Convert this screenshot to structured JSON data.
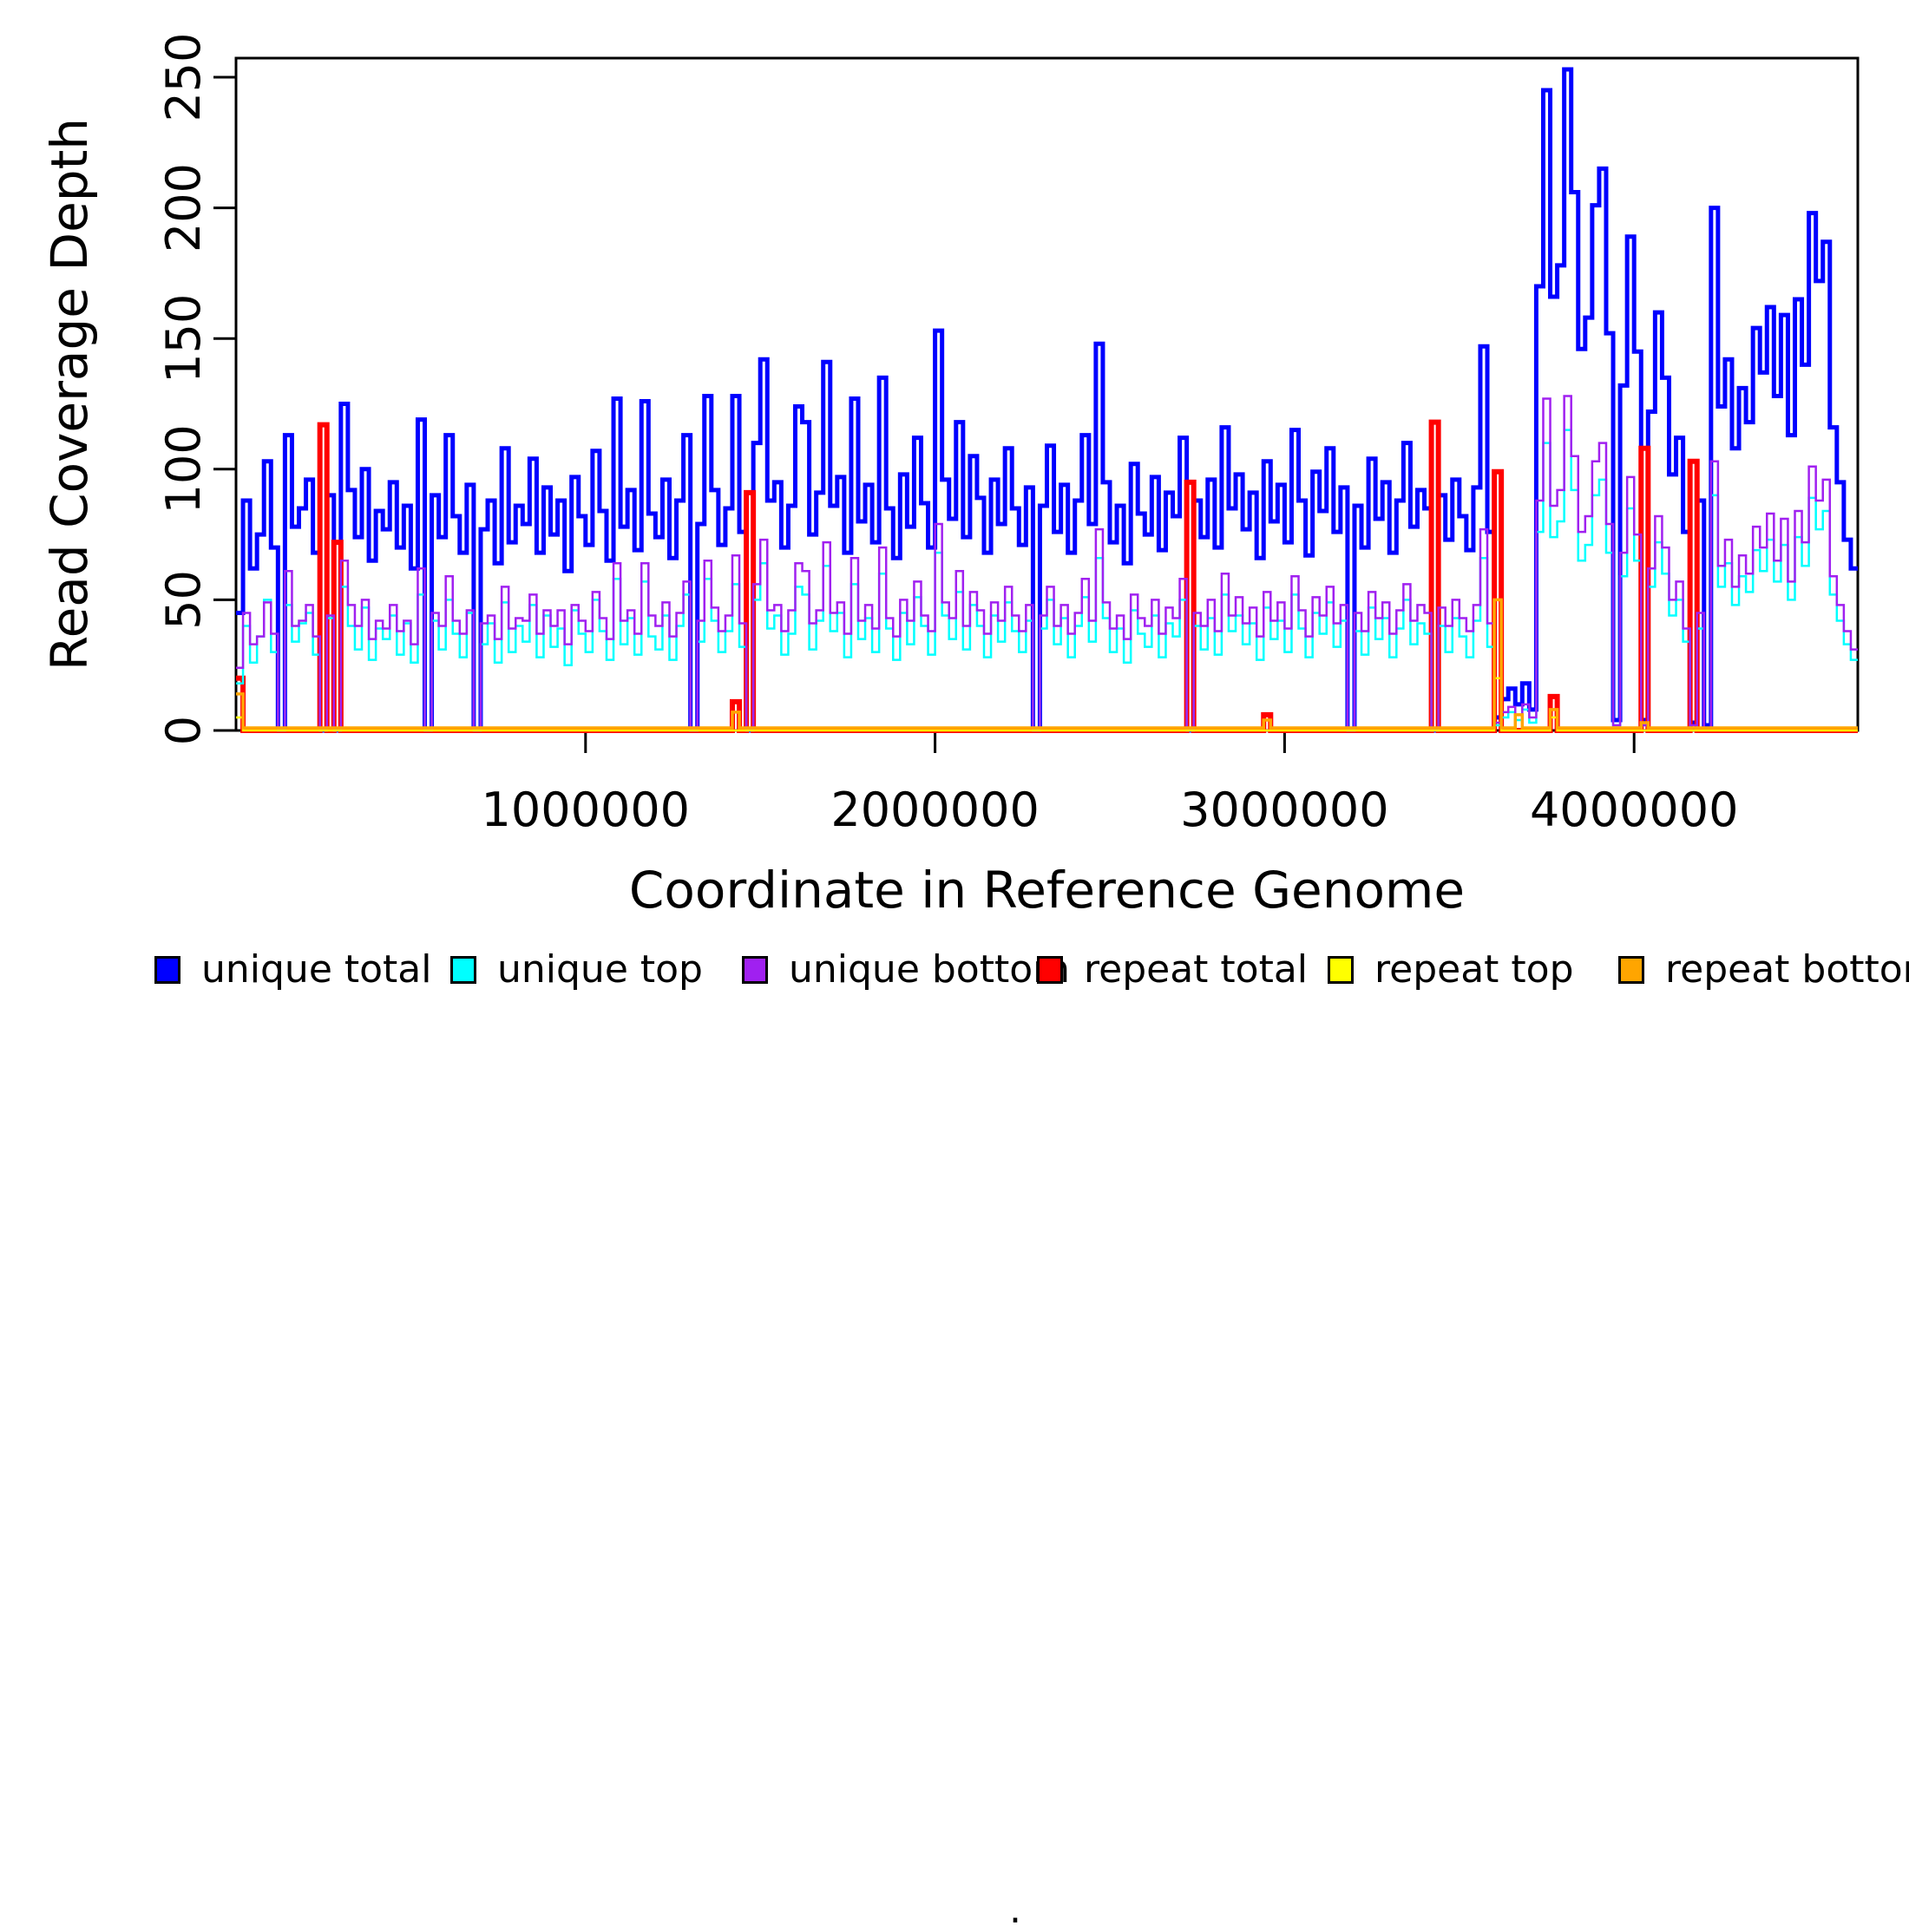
{
  "axes": {
    "x": {
      "label": "Coordinate in Reference Genome",
      "ticks": [
        {
          "value": 1000000,
          "label": "1000000"
        },
        {
          "value": 2000000,
          "label": "2000000"
        },
        {
          "value": 3000000,
          "label": "3000000"
        },
        {
          "value": 4000000,
          "label": "4000000"
        }
      ]
    },
    "y": {
      "label": "Read Coverage Depth",
      "ticks": [
        {
          "value": 0,
          "label": "0"
        },
        {
          "value": 50,
          "label": "50"
        },
        {
          "value": 100,
          "label": "100"
        },
        {
          "value": 150,
          "label": "150"
        },
        {
          "value": 200,
          "label": "200"
        },
        {
          "value": 250,
          "label": "250"
        }
      ]
    }
  },
  "legend": {
    "stray_mark": ".",
    "items": [
      {
        "label": "unique total",
        "color": "#0000ff"
      },
      {
        "label": "unique top",
        "color": "#00ffff"
      },
      {
        "label": "unique bottom",
        "color": "#a020f0"
      },
      {
        "label": "repeat total",
        "color": "#ff0000"
      },
      {
        "label": "repeat top",
        "color": "#ffff00"
      },
      {
        "label": "repeat bottom",
        "color": "#ffa500"
      }
    ]
  },
  "chart_data": {
    "type": "line",
    "subtype": "step-coverage",
    "title": "",
    "xlabel": "Coordinate in Reference Genome",
    "ylabel": "Read Coverage Depth",
    "xlim": [
      0,
      4640000
    ],
    "ylim": [
      0,
      257
    ],
    "grid": false,
    "legend_position": "bottom",
    "bin_size": 20000,
    "x_start": 0,
    "series": [
      {
        "name": "unique total",
        "color": "#0000ff",
        "line_width": 5,
        "values": [
          45,
          88,
          62,
          75,
          103,
          70,
          0,
          113,
          78,
          85,
          96,
          68,
          0,
          90,
          0,
          125,
          92,
          74,
          100,
          65,
          84,
          77,
          95,
          70,
          86,
          62,
          119,
          0,
          90,
          74,
          113,
          82,
          68,
          94,
          0,
          77,
          88,
          64,
          108,
          72,
          86,
          79,
          104,
          68,
          93,
          75,
          88,
          61,
          97,
          82,
          71,
          107,
          84,
          65,
          127,
          78,
          92,
          69,
          126,
          83,
          74,
          96,
          66,
          88,
          113,
          0,
          79,
          128,
          92,
          71,
          85,
          128,
          76,
          0,
          110,
          142,
          88,
          95,
          70,
          86,
          124,
          118,
          75,
          91,
          141,
          86,
          97,
          68,
          127,
          80,
          94,
          72,
          135,
          85,
          66,
          98,
          78,
          112,
          87,
          70,
          153,
          96,
          81,
          118,
          74,
          105,
          89,
          68,
          96,
          79,
          108,
          85,
          71,
          93,
          0,
          86,
          109,
          76,
          94,
          68,
          88,
          113,
          79,
          148,
          95,
          72,
          86,
          64,
          102,
          83,
          75,
          97,
          69,
          91,
          82,
          112,
          0,
          88,
          74,
          96,
          70,
          116,
          85,
          98,
          77,
          91,
          66,
          103,
          80,
          94,
          72,
          115,
          88,
          67,
          99,
          84,
          108,
          76,
          93,
          0,
          86,
          70,
          104,
          81,
          95,
          68,
          88,
          110,
          78,
          92,
          85,
          0,
          90,
          73,
          96,
          82,
          69,
          93,
          147,
          76,
          5,
          12,
          16,
          10,
          18,
          8,
          170,
          245,
          166,
          178,
          253,
          206,
          146,
          158,
          201,
          215,
          152,
          4,
          132,
          189,
          145,
          4,
          122,
          160,
          135,
          98,
          112,
          76,
          3,
          88,
          2,
          200,
          124,
          142,
          108,
          131,
          118,
          154,
          137,
          162,
          128,
          159,
          113,
          165,
          140,
          198,
          172,
          187,
          116,
          95,
          73,
          62
        ]
      },
      {
        "name": "unique top",
        "color": "#00ffff",
        "line_width": 2.5,
        "values": [
          18,
          40,
          26,
          36,
          50,
          30,
          0,
          48,
          34,
          41,
          45,
          29,
          0,
          43,
          0,
          55,
          40,
          31,
          47,
          27,
          39,
          35,
          44,
          29,
          41,
          26,
          52,
          0,
          42,
          31,
          50,
          37,
          28,
          45,
          0,
          33,
          41,
          26,
          49,
          30,
          40,
          34,
          48,
          28,
          44,
          32,
          39,
          25,
          46,
          37,
          30,
          50,
          38,
          27,
          58,
          33,
          43,
          29,
          57,
          36,
          31,
          44,
          27,
          40,
          52,
          0,
          34,
          58,
          42,
          30,
          38,
          56,
          32,
          0,
          50,
          64,
          39,
          44,
          29,
          37,
          55,
          52,
          31,
          42,
          63,
          38,
          45,
          28,
          56,
          35,
          43,
          30,
          60,
          39,
          27,
          45,
          33,
          51,
          40,
          29,
          68,
          44,
          35,
          53,
          31,
          48,
          40,
          28,
          44,
          34,
          49,
          38,
          30,
          42,
          0,
          39,
          50,
          33,
          43,
          28,
          40,
          51,
          34,
          66,
          43,
          30,
          39,
          26,
          46,
          37,
          32,
          44,
          28,
          41,
          36,
          50,
          0,
          40,
          31,
          43,
          29,
          52,
          38,
          44,
          33,
          41,
          27,
          47,
          35,
          42,
          30,
          52,
          39,
          28,
          45,
          37,
          49,
          32,
          42,
          0,
          38,
          29,
          47,
          35,
          43,
          28,
          39,
          50,
          33,
          41,
          37,
          0,
          40,
          30,
          43,
          36,
          28,
          42,
          66,
          32,
          2,
          5,
          7,
          4,
          8,
          3,
          76,
          110,
          74,
          80,
          115,
          92,
          65,
          71,
          90,
          96,
          68,
          2,
          59,
          85,
          65,
          2,
          55,
          72,
          60,
          44,
          50,
          34,
          1,
          39,
          1,
          90,
          55,
          64,
          48,
          59,
          53,
          69,
          61,
          73,
          57,
          71,
          50,
          74,
          63,
          89,
          77,
          84,
          52,
          42,
          33,
          27
        ]
      },
      {
        "name": "unique bottom",
        "color": "#a020f0",
        "line_width": 2.5,
        "values": [
          24,
          45,
          33,
          36,
          49,
          37,
          0,
          61,
          40,
          42,
          48,
          36,
          0,
          44,
          0,
          65,
          48,
          40,
          50,
          35,
          42,
          39,
          48,
          38,
          42,
          33,
          62,
          0,
          45,
          40,
          59,
          42,
          37,
          46,
          0,
          41,
          44,
          35,
          55,
          39,
          43,
          42,
          52,
          37,
          46,
          40,
          46,
          33,
          48,
          42,
          38,
          53,
          43,
          35,
          64,
          42,
          46,
          37,
          64,
          44,
          40,
          49,
          36,
          45,
          57,
          0,
          42,
          65,
          47,
          38,
          44,
          67,
          41,
          0,
          56,
          73,
          46,
          48,
          38,
          46,
          64,
          61,
          41,
          46,
          72,
          45,
          49,
          37,
          66,
          42,
          48,
          39,
          70,
          43,
          36,
          50,
          42,
          57,
          44,
          38,
          79,
          49,
          43,
          61,
          40,
          53,
          46,
          37,
          49,
          42,
          55,
          44,
          38,
          48,
          0,
          44,
          55,
          40,
          48,
          37,
          45,
          58,
          42,
          77,
          49,
          39,
          44,
          35,
          52,
          43,
          40,
          50,
          37,
          47,
          43,
          58,
          0,
          45,
          40,
          50,
          38,
          60,
          44,
          51,
          41,
          47,
          36,
          53,
          42,
          49,
          39,
          59,
          46,
          36,
          51,
          44,
          55,
          41,
          48,
          0,
          45,
          38,
          53,
          43,
          49,
          37,
          46,
          56,
          42,
          48,
          45,
          0,
          47,
          40,
          50,
          43,
          38,
          48,
          77,
          41,
          3,
          7,
          9,
          6,
          10,
          5,
          88,
          127,
          86,
          92,
          128,
          105,
          76,
          82,
          103,
          110,
          79,
          2,
          68,
          97,
          75,
          2,
          62,
          82,
          70,
          50,
          57,
          39,
          2,
          45,
          1,
          103,
          63,
          73,
          55,
          67,
          60,
          78,
          70,
          83,
          65,
          81,
          57,
          84,
          72,
          101,
          88,
          96,
          59,
          48,
          38,
          31
        ]
      },
      {
        "name": "repeat total",
        "color": "#ff0000",
        "line_width": 6,
        "baseline": 0,
        "spikes": {
          "0": 20,
          "12": 117,
          "14": 72,
          "71": 11,
          "73": 91,
          "136": 95,
          "147": 6,
          "171": 118,
          "180": 99,
          "188": 13,
          "201": 108,
          "208": 103
        }
      },
      {
        "name": "repeat top",
        "color": "#ffff00",
        "line_width": 2.5,
        "baseline": 0,
        "spikes": {
          "0": 5,
          "180": 20,
          "188": 5
        }
      },
      {
        "name": "repeat bottom",
        "color": "#ffa500",
        "line_width": 3.5,
        "baseline": 1,
        "spikes": {
          "0": 14,
          "71": 7,
          "147": 4,
          "180": 50,
          "183": 6,
          "188": 8,
          "201": 3
        }
      }
    ]
  }
}
